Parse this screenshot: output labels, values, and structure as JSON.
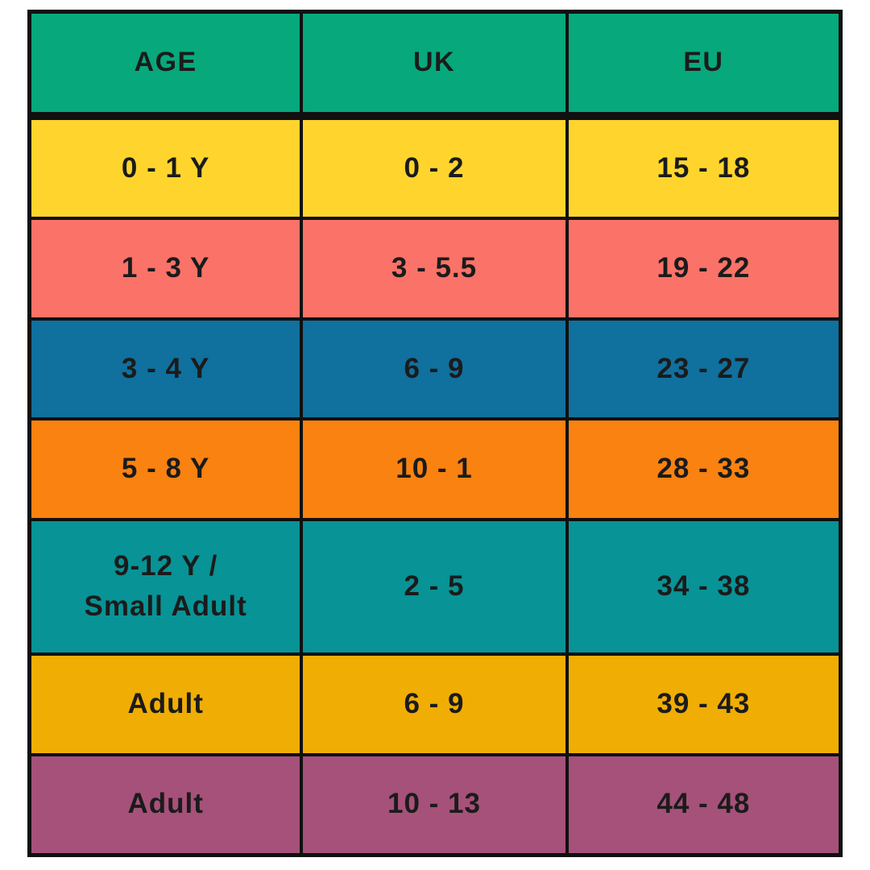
{
  "chart_data": {
    "type": "table",
    "columns": [
      "AGE",
      "UK",
      "EU"
    ],
    "rows": [
      {
        "age": "0 - 1 Y",
        "uk": "0 - 2",
        "eu": "15 - 18",
        "color": "#FFD52D"
      },
      {
        "age": "1 - 3 Y",
        "uk": "3 - 5.5",
        "eu": "19 - 22",
        "color": "#FA7268"
      },
      {
        "age": "3 - 4 Y",
        "uk": "6 - 9",
        "eu": "23 - 27",
        "color": "#10709E"
      },
      {
        "age": "5 - 8 Y",
        "uk": "10 - 1",
        "eu": "28 - 33",
        "color": "#F98211"
      },
      {
        "age": "9-12 Y /\nSmall Adult",
        "uk": "2 - 5",
        "eu": "34 - 38",
        "color": "#089396"
      },
      {
        "age": "Adult",
        "uk": "6 - 9",
        "eu": "39 - 43",
        "color": "#F0AD04"
      },
      {
        "age": "Adult",
        "uk": "10 - 13",
        "eu": "44 - 48",
        "color": "#A65179"
      }
    ],
    "header_color": "#07A87C",
    "border_color": "#101010",
    "text_color": "#1B1B1B",
    "layout_hints": {
      "grid": "on",
      "header_rule": "thick",
      "tall_row_index": 4
    }
  }
}
